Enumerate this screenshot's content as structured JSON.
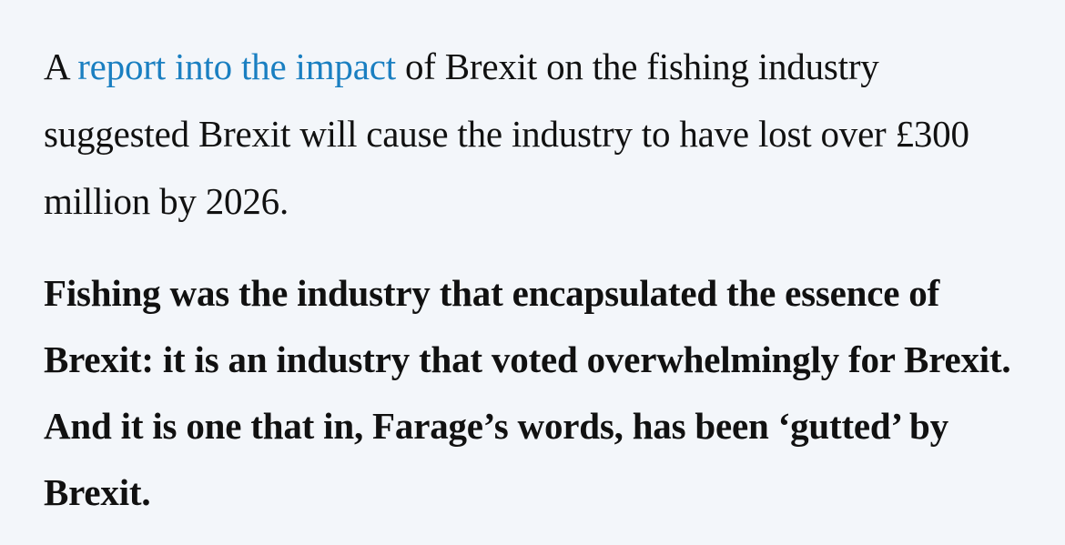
{
  "article": {
    "paragraph_1": {
      "before_link": "A ",
      "link_text": "report into the impact",
      "after_link": " of Brexit on the fishing industry suggested Brexit will cause the industry to have lost over £300 million by 2026."
    },
    "paragraph_2": {
      "text": "Fishing was the industry that encapsulated the essence of Brexit: it is an industry that voted overwhelmingly for Brexit. And it is one that in, Farage’s words, has been ‘gutted’ by Brexit."
    }
  },
  "colors": {
    "background": "#f3f6fa",
    "text": "#111111",
    "link": "#1a7fc1"
  }
}
